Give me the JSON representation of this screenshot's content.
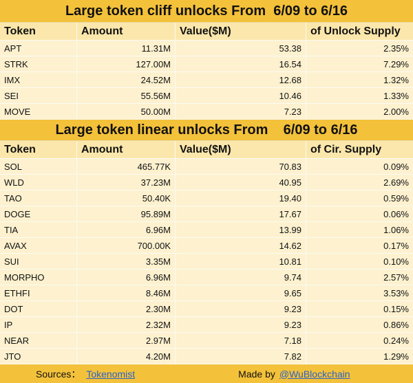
{
  "tables": [
    {
      "title": "Large token cliff unlocks From  6/09 to 6/16",
      "header": [
        "Token",
        "Amount",
        "Value($M)",
        "of Unlock Supply"
      ],
      "rows": [
        [
          "APT",
          "11.31M",
          "53.38",
          "2.35%"
        ],
        [
          "STRK",
          "127.00M",
          "16.54",
          "7.29%"
        ],
        [
          "IMX",
          "24.52M",
          "12.68",
          "1.32%"
        ],
        [
          "SEI",
          "55.56M",
          "10.46",
          "1.33%"
        ],
        [
          "MOVE",
          "50.00M",
          "7.23",
          "2.00%"
        ]
      ]
    },
    {
      "title": "Large token linear unlocks From    6/09 to 6/16",
      "header": [
        "Token",
        "Amount",
        "Value($M)",
        "of Cir. Supply"
      ],
      "rows": [
        [
          "SOL",
          "465.77K",
          "70.83",
          "0.09%"
        ],
        [
          "WLD",
          "37.23M",
          "40.95",
          "2.69%"
        ],
        [
          "TAO",
          "50.40K",
          "19.40",
          "0.59%"
        ],
        [
          "DOGE",
          "95.89M",
          "17.67",
          "0.06%"
        ],
        [
          "TIA",
          "6.96M",
          "13.99",
          "1.06%"
        ],
        [
          "AVAX",
          "700.00K",
          "14.62",
          "0.17%"
        ],
        [
          "SUI",
          "3.35M",
          "10.81",
          "0.10%"
        ],
        [
          "MORPHO",
          "6.96M",
          "9.74",
          "2.57%"
        ],
        [
          "ETHFI",
          "8.46M",
          "9.65",
          "3.53%"
        ],
        [
          "DOT",
          "2.30M",
          "9.23",
          "0.15%"
        ],
        [
          "IP",
          "2.32M",
          "9.23",
          "0.86%"
        ],
        [
          "NEAR",
          "2.97M",
          "7.18",
          "0.24%"
        ],
        [
          "JTO",
          "4.20M",
          "7.82",
          "1.29%"
        ]
      ]
    }
  ],
  "footer": {
    "sources_label": "Sources：",
    "source": "Tokenomist",
    "made_by_label": "Made by",
    "made_by": "@WuBlockchain"
  }
}
